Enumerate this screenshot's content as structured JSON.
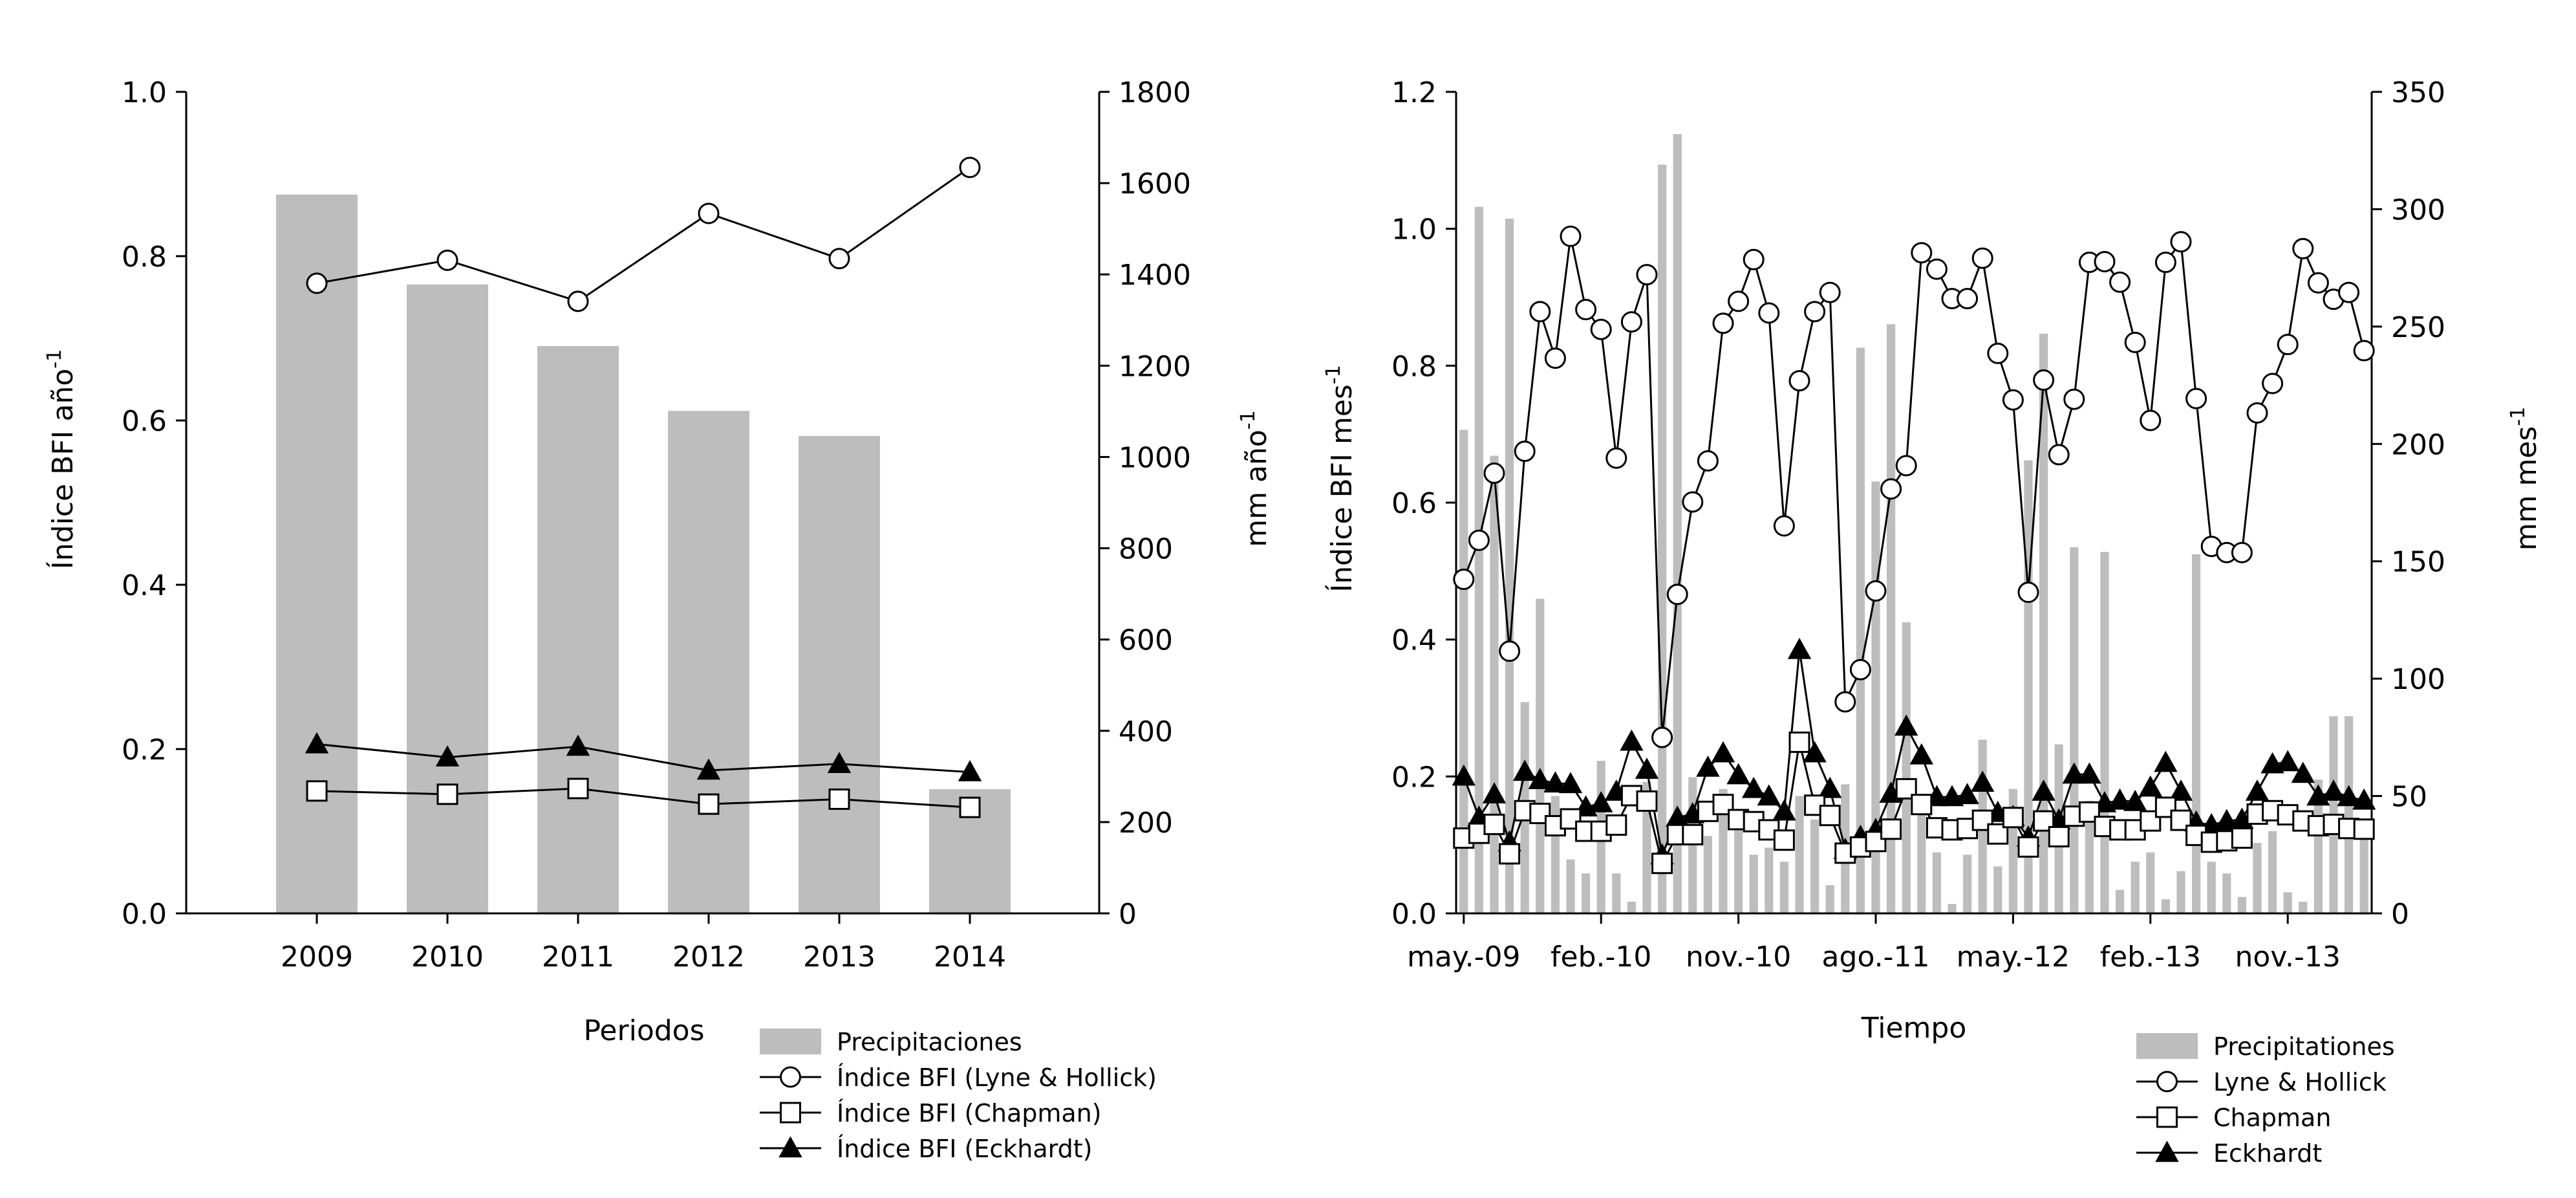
{
  "chart_data": [
    {
      "type": "bar+line",
      "xlabel": "Periodos",
      "ylabel_left": "Índice BFI año",
      "ylabel_left_exp": "-1",
      "ylabel_right": "mm año",
      "ylabel_right_exp": "-1",
      "ylim_left": [
        0,
        1.0
      ],
      "ylim_right": [
        0,
        1800
      ],
      "yticks_left": [
        "0.0",
        "0.2",
        "0.4",
        "0.6",
        "0.8",
        "1.0"
      ],
      "yticks_right": [
        "0",
        "200",
        "400",
        "600",
        "800",
        "1000",
        "1200",
        "1400",
        "1600",
        "1800"
      ],
      "categories": [
        "2009",
        "2010",
        "2011",
        "2012",
        "2013",
        "2014"
      ],
      "bar_color": "#bdbdbd",
      "bars": {
        "name": "Precipitaciones",
        "axis": "right",
        "values": [
          1575,
          1378,
          1243,
          1101,
          1046,
          272
        ]
      },
      "series": [
        {
          "name": "Índice BFI (Lyne & Hollick)",
          "marker": "circle",
          "values": [
            0.767,
            0.795,
            0.745,
            0.852,
            0.797,
            0.908
          ]
        },
        {
          "name": "Índice BFI (Chapman)",
          "marker": "square",
          "values": [
            0.149,
            0.145,
            0.152,
            0.133,
            0.139,
            0.129
          ]
        },
        {
          "name": "Índice BFI (Eckhardt)",
          "marker": "triangle",
          "values": [
            0.206,
            0.19,
            0.203,
            0.174,
            0.182,
            0.172
          ]
        }
      ],
      "legend": [
        "Precipitaciones",
        "Índice BFI (Lyne & Hollick)",
        "Índice BFI (Chapman)",
        "Índice BFI (Eckhardt)"
      ]
    },
    {
      "type": "bar+line",
      "xlabel": "Tiempo",
      "ylabel_left": "Índice BFI mes",
      "ylabel_left_exp": "-1",
      "ylabel_right": "mm mes",
      "ylabel_right_exp": "-1",
      "ylim_left": [
        0,
        1.2
      ],
      "ylim_right": [
        0,
        350
      ],
      "yticks_left": [
        "0.0",
        "0.2",
        "0.4",
        "0.6",
        "0.8",
        "1.0",
        "1.2"
      ],
      "yticks_right": [
        "0",
        "50",
        "100",
        "150",
        "200",
        "250",
        "300",
        "350"
      ],
      "x_tick_labels": [
        {
          "month_index": 0,
          "label": "may.-09"
        },
        {
          "month_index": 9,
          "label": "feb.-10"
        },
        {
          "month_index": 18,
          "label": "nov.-10"
        },
        {
          "month_index": 27,
          "label": "ago.-11"
        },
        {
          "month_index": 36,
          "label": "may.-12"
        },
        {
          "month_index": 45,
          "label": "feb.-13"
        },
        {
          "month_index": 54,
          "label": "nov.-13"
        }
      ],
      "bar_color": "#bdbdbd",
      "bars": {
        "name": "Precipitaciones",
        "axis": "right",
        "values": [
          206,
          301,
          195,
          296,
          90,
          134,
          50,
          23,
          17,
          65,
          17,
          5,
          56,
          319,
          332,
          58,
          33,
          53,
          38,
          25,
          28,
          22,
          50,
          40,
          12,
          55,
          241,
          184,
          251,
          124,
          47,
          26,
          4,
          25,
          74,
          20,
          53,
          193,
          247,
          72,
          156,
          48,
          154,
          10,
          22,
          26,
          6,
          18,
          153,
          22,
          17,
          7,
          30,
          35,
          9,
          5,
          57,
          84,
          84,
          32
        ]
      },
      "series": [
        {
          "name": "Lyne & Hollick",
          "marker": "circle",
          "values": [
            0.488,
            0.545,
            0.643,
            0.383,
            0.675,
            0.879,
            0.811,
            0.989,
            0.882,
            0.853,
            0.665,
            0.864,
            0.933,
            0.257,
            0.466,
            0.601,
            0.661,
            0.862,
            0.894,
            0.955,
            0.877,
            0.566,
            0.778,
            0.879,
            0.907,
            0.309,
            0.356,
            0.471,
            0.62,
            0.654,
            0.965,
            0.941,
            0.898,
            0.898,
            0.957,
            0.818,
            0.75,
            0.469,
            0.779,
            0.67,
            0.751,
            0.951,
            0.952,
            0.922,
            0.834,
            0.72,
            0.951,
            0.981,
            0.752,
            0.536,
            0.527,
            0.527,
            0.731,
            0.774,
            0.831,
            0.971,
            0.921,
            0.897,
            0.907,
            0.822
          ]
        },
        {
          "name": "Chapman",
          "marker": "square",
          "values": [
            0.11,
            0.117,
            0.13,
            0.087,
            0.15,
            0.146,
            0.128,
            0.138,
            0.12,
            0.12,
            0.129,
            0.172,
            0.164,
            0.073,
            0.115,
            0.115,
            0.149,
            0.159,
            0.137,
            0.134,
            0.122,
            0.107,
            0.25,
            0.158,
            0.143,
            0.088,
            0.097,
            0.105,
            0.123,
            0.182,
            0.159,
            0.125,
            0.122,
            0.124,
            0.136,
            0.116,
            0.14,
            0.097,
            0.135,
            0.112,
            0.142,
            0.148,
            0.127,
            0.122,
            0.122,
            0.135,
            0.155,
            0.136,
            0.114,
            0.104,
            0.106,
            0.11,
            0.145,
            0.15,
            0.144,
            0.135,
            0.128,
            0.13,
            0.124,
            0.123
          ]
        },
        {
          "name": "Eckhardt",
          "marker": "triangle",
          "values": [
            0.2,
            0.14,
            0.174,
            0.104,
            0.207,
            0.195,
            0.19,
            0.189,
            0.155,
            0.161,
            0.178,
            0.251,
            0.21,
            0.085,
            0.14,
            0.145,
            0.213,
            0.234,
            0.202,
            0.182,
            0.171,
            0.149,
            0.385,
            0.234,
            0.182,
            0.093,
            0.112,
            0.122,
            0.175,
            0.273,
            0.231,
            0.17,
            0.17,
            0.173,
            0.191,
            0.147,
            0.141,
            0.111,
            0.178,
            0.136,
            0.203,
            0.203,
            0.161,
            0.165,
            0.163,
            0.184,
            0.22,
            0.178,
            0.133,
            0.129,
            0.135,
            0.137,
            0.178,
            0.218,
            0.221,
            0.204,
            0.171,
            0.178,
            0.17,
            0.165
          ]
        }
      ],
      "legend": [
        "Precipitationes",
        "Lyne & Hollick",
        "Chapman",
        "Eckhardt"
      ]
    }
  ]
}
